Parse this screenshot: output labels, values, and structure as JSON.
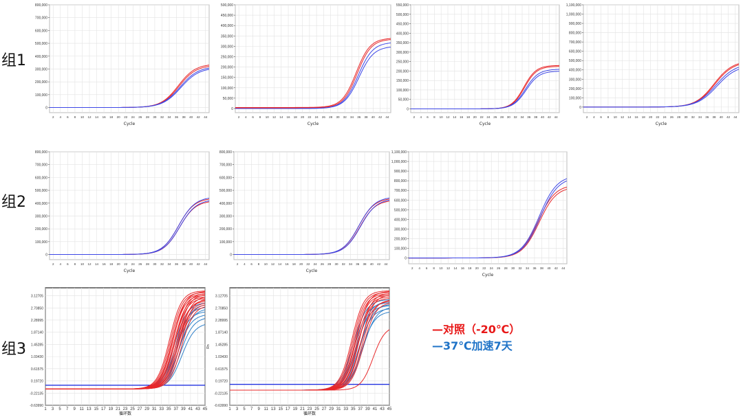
{
  "groups": [
    {
      "label": "组1"
    },
    {
      "label": "组2"
    },
    {
      "label": "组3"
    }
  ],
  "legend": {
    "control": "—对照（-20℃）",
    "accelerated": "—37℃加速7天"
  },
  "colors": {
    "control": "#e8282a",
    "accelerated": "#3c46e6",
    "accelerated_g3": "#2d7fc8"
  },
  "chart_data": [
    {
      "id": "g1c1",
      "type": "line",
      "xlabel": "Cycle",
      "xlim": [
        1,
        45
      ],
      "ylim": [
        -40000,
        800000
      ],
      "xticks": [
        2,
        4,
        6,
        8,
        10,
        12,
        14,
        16,
        18,
        20,
        22,
        24,
        26,
        28,
        30,
        32,
        34,
        36,
        38,
        40,
        42,
        44
      ],
      "yticks": [
        0,
        100000,
        200000,
        300000,
        400000,
        500000,
        600000,
        700000,
        800000
      ],
      "ytick_labels": [
        "0",
        "100,000",
        "200,000",
        "300,000",
        "400,000",
        "500,000",
        "600,000",
        "700,000",
        "800,000"
      ],
      "series": [
        {
          "color": "control",
          "baseline": 0,
          "plateau": 340000,
          "midpoint": 36.5,
          "slope": 0.42
        },
        {
          "color": "control",
          "baseline": 0,
          "plateau": 330000,
          "midpoint": 36.7,
          "slope": 0.42
        },
        {
          "color": "accelerated",
          "baseline": 0,
          "plateau": 320000,
          "midpoint": 37.0,
          "slope": 0.4
        },
        {
          "color": "accelerated",
          "baseline": 0,
          "plateau": 310000,
          "midpoint": 37.2,
          "slope": 0.4
        }
      ]
    },
    {
      "id": "g1c2",
      "type": "line",
      "xlabel": "Cycle",
      "xlim": [
        1,
        45
      ],
      "ylim": [
        -20000,
        500000
      ],
      "xticks": [
        2,
        4,
        6,
        8,
        10,
        12,
        14,
        16,
        18,
        20,
        22,
        24,
        26,
        28,
        30,
        32,
        34,
        36,
        38,
        40,
        42,
        44
      ],
      "yticks": [
        0,
        50000,
        100000,
        150000,
        200000,
        250000,
        300000,
        350000,
        400000,
        450000,
        500000
      ],
      "ytick_labels": [
        "0",
        "50,000",
        "100,000",
        "150,000",
        "200,000",
        "250,000",
        "300,000",
        "350,000",
        "400,000",
        "450,000",
        "500,000"
      ],
      "series": [
        {
          "color": "control",
          "baseline": 5000,
          "plateau": 340000,
          "midpoint": 35.2,
          "slope": 0.5
        },
        {
          "color": "control",
          "baseline": 3000,
          "plateau": 335000,
          "midpoint": 35.5,
          "slope": 0.5
        },
        {
          "color": "accelerated",
          "baseline": 0,
          "plateau": 320000,
          "midpoint": 35.8,
          "slope": 0.48
        },
        {
          "color": "accelerated",
          "baseline": 0,
          "plateau": 300000,
          "midpoint": 36.0,
          "slope": 0.48
        }
      ]
    },
    {
      "id": "g1c3",
      "type": "line",
      "xlabel": "Cycle",
      "xlim": [
        1,
        45
      ],
      "ylim": [
        -20000,
        550000
      ],
      "xticks": [
        2,
        4,
        6,
        8,
        10,
        12,
        14,
        16,
        18,
        20,
        22,
        24,
        26,
        28,
        30,
        32,
        34,
        36,
        38,
        40,
        42,
        44
      ],
      "yticks": [
        0,
        50000,
        100000,
        150000,
        200000,
        250000,
        300000,
        350000,
        400000,
        450000,
        500000,
        550000
      ],
      "ytick_labels": [
        "0",
        "50,000",
        "100,000",
        "150,000",
        "200,000",
        "250,000",
        "300,000",
        "350,000",
        "400,000",
        "450,000",
        "500,000",
        "550,000"
      ],
      "series": [
        {
          "color": "control",
          "baseline": 0,
          "plateau": 230000,
          "midpoint": 34.5,
          "slope": 0.55
        },
        {
          "color": "control",
          "baseline": 0,
          "plateau": 225000,
          "midpoint": 34.7,
          "slope": 0.55
        },
        {
          "color": "accelerated",
          "baseline": 0,
          "plateau": 210000,
          "midpoint": 35.0,
          "slope": 0.52
        },
        {
          "color": "accelerated",
          "baseline": 0,
          "plateau": 200000,
          "midpoint": 35.2,
          "slope": 0.52
        }
      ]
    },
    {
      "id": "g1c4",
      "type": "line",
      "xlabel": "Cycle",
      "xlim": [
        1,
        45
      ],
      "ylim": [
        -60000,
        1100000
      ],
      "xticks": [
        2,
        4,
        6,
        8,
        10,
        12,
        14,
        16,
        18,
        20,
        22,
        24,
        26,
        28,
        30,
        32,
        34,
        36,
        38,
        40,
        42,
        44
      ],
      "yticks": [
        0,
        100000,
        200000,
        300000,
        400000,
        500000,
        600000,
        700000,
        800000,
        900000,
        1000000,
        1100000
      ],
      "ytick_labels": [
        "0",
        "100,000",
        "200,000",
        "300,000",
        "400,000",
        "500,000",
        "600,000",
        "700,000",
        "800,000",
        "900,000",
        "1,000,000",
        "1,100,000"
      ],
      "series": [
        {
          "color": "control",
          "baseline": 0,
          "plateau": 500000,
          "midpoint": 38.0,
          "slope": 0.38
        },
        {
          "color": "control",
          "baseline": 0,
          "plateau": 490000,
          "midpoint": 38.2,
          "slope": 0.38
        },
        {
          "color": "accelerated",
          "baseline": 0,
          "plateau": 470000,
          "midpoint": 38.5,
          "slope": 0.36
        },
        {
          "color": "accelerated",
          "baseline": 0,
          "plateau": 450000,
          "midpoint": 38.8,
          "slope": 0.36
        }
      ]
    },
    {
      "id": "g2c1",
      "type": "line",
      "xlabel": "Cycle",
      "xlim": [
        1,
        45
      ],
      "ylim": [
        -40000,
        800000
      ],
      "xticks": [
        2,
        4,
        6,
        8,
        10,
        12,
        14,
        16,
        18,
        20,
        22,
        24,
        26,
        28,
        30,
        32,
        34,
        36,
        38,
        40,
        42,
        44
      ],
      "yticks": [
        0,
        100000,
        200000,
        300000,
        400000,
        500000,
        600000,
        700000,
        800000
      ],
      "ytick_labels": [
        "0",
        "100,000",
        "200,000",
        "300,000",
        "400,000",
        "500,000",
        "600,000",
        "700,000",
        "800,000"
      ],
      "series": [
        {
          "color": "control",
          "baseline": 0,
          "plateau": 440000,
          "midpoint": 36.5,
          "slope": 0.45
        },
        {
          "color": "control",
          "baseline": 0,
          "plateau": 420000,
          "midpoint": 36.8,
          "slope": 0.45
        },
        {
          "color": "accelerated",
          "baseline": 0,
          "plateau": 450000,
          "midpoint": 36.6,
          "slope": 0.44
        },
        {
          "color": "accelerated",
          "baseline": 0,
          "plateau": 430000,
          "midpoint": 36.9,
          "slope": 0.44
        }
      ]
    },
    {
      "id": "g2c2",
      "type": "line",
      "xlabel": "Cycle",
      "xlim": [
        1,
        45
      ],
      "ylim": [
        -40000,
        800000
      ],
      "xticks": [
        2,
        4,
        6,
        8,
        10,
        12,
        14,
        16,
        18,
        20,
        22,
        24,
        26,
        28,
        30,
        32,
        34,
        36,
        38,
        40,
        42,
        44
      ],
      "yticks": [
        0,
        100000,
        200000,
        300000,
        400000,
        500000,
        600000,
        700000,
        800000
      ],
      "ytick_labels": [
        "0",
        "100,000",
        "200,000",
        "300,000",
        "400,000",
        "500,000",
        "600,000",
        "700,000",
        "800,000"
      ],
      "series": [
        {
          "color": "control",
          "baseline": 0,
          "plateau": 440000,
          "midpoint": 36.3,
          "slope": 0.45
        },
        {
          "color": "control",
          "baseline": 0,
          "plateau": 425000,
          "midpoint": 36.6,
          "slope": 0.45
        },
        {
          "color": "accelerated",
          "baseline": 0,
          "plateau": 450000,
          "midpoint": 36.4,
          "slope": 0.44
        },
        {
          "color": "accelerated",
          "baseline": 0,
          "plateau": 435000,
          "midpoint": 36.8,
          "slope": 0.44
        }
      ]
    },
    {
      "id": "g2c3",
      "type": "line",
      "xlabel": "Cycle",
      "xlim": [
        1,
        45
      ],
      "ylim": [
        -60000,
        1100000
      ],
      "xticks": [
        2,
        4,
        6,
        8,
        10,
        12,
        14,
        16,
        18,
        20,
        22,
        24,
        26,
        28,
        30,
        32,
        34,
        36,
        38,
        40,
        42,
        44
      ],
      "yticks": [
        0,
        100000,
        200000,
        300000,
        400000,
        500000,
        600000,
        700000,
        800000,
        900000,
        1000000,
        1100000
      ],
      "ytick_labels": [
        "0",
        "100,000",
        "200,000",
        "300,000",
        "400,000",
        "500,000",
        "600,000",
        "700,000",
        "800,000",
        "900,000",
        "1,000,000",
        "1,100,000"
      ],
      "series": [
        {
          "color": "control",
          "baseline": 0,
          "plateau": 760000,
          "midpoint": 37.0,
          "slope": 0.42
        },
        {
          "color": "control",
          "baseline": 0,
          "plateau": 740000,
          "midpoint": 37.3,
          "slope": 0.42
        },
        {
          "color": "accelerated",
          "baseline": 0,
          "plateau": 860000,
          "midpoint": 37.3,
          "slope": 0.4
        },
        {
          "color": "accelerated",
          "baseline": 0,
          "plateau": 840000,
          "midpoint": 37.6,
          "slope": 0.4
        }
      ]
    },
    {
      "id": "g3c1",
      "type": "line",
      "xlabel": "循环数",
      "ylabel": "Rn",
      "xlim": [
        1,
        45
      ],
      "ylim": [
        -0.6399,
        3.4
      ],
      "xticks": [
        1,
        3,
        5,
        7,
        9,
        11,
        13,
        15,
        17,
        19,
        21,
        23,
        25,
        27,
        29,
        31,
        33,
        35,
        37,
        39,
        41,
        43,
        45
      ],
      "yticks": [
        -0.6399,
        -0.22135,
        0.1972,
        0.61575,
        1.0343,
        1.45285,
        1.8714,
        2.28995,
        2.7085,
        3.12705
      ],
      "ytick_labels": [
        "-0.63990",
        "-0.22135",
        "0.19720",
        "0.61575",
        "1.03430",
        "1.45285",
        "1.87140",
        "2.28995",
        "2.70850",
        "3.12705"
      ],
      "threshold": 0.05,
      "baseline": -0.08,
      "curves": {
        "control": [
          [
            3.3,
            35.2
          ],
          [
            3.25,
            35.5
          ],
          [
            3.2,
            35.8
          ],
          [
            3.15,
            36.0
          ],
          [
            3.28,
            36.2
          ],
          [
            3.1,
            36.4
          ],
          [
            3.05,
            36.6
          ],
          [
            3.22,
            36.8
          ],
          [
            2.95,
            37.0
          ],
          [
            3.18,
            37.2
          ],
          [
            3.0,
            37.4
          ],
          [
            2.9,
            37.6
          ],
          [
            3.12,
            37.8
          ],
          [
            2.85,
            38.0
          ],
          [
            3.05,
            38.2
          ],
          [
            2.8,
            38.5
          ]
        ],
        "accelerated": [
          [
            2.9,
            36.5
          ],
          [
            2.75,
            36.8
          ],
          [
            2.6,
            37.0
          ],
          [
            2.85,
            37.3
          ],
          [
            2.5,
            37.6
          ],
          [
            2.7,
            37.9
          ],
          [
            2.4,
            38.2
          ],
          [
            2.2,
            38.6
          ]
        ]
      }
    },
    {
      "id": "g3c2",
      "type": "line",
      "xlabel": "循环数",
      "ylabel": "Rn",
      "xlim": [
        1,
        45
      ],
      "ylim": [
        -0.6399,
        3.4
      ],
      "xticks": [
        1,
        3,
        5,
        7,
        9,
        11,
        13,
        15,
        17,
        19,
        21,
        23,
        25,
        27,
        29,
        31,
        33,
        35,
        37,
        39,
        41,
        43,
        45
      ],
      "yticks": [
        -0.6399,
        -0.22135,
        0.1972,
        0.61575,
        1.0343,
        1.45285,
        1.8714,
        2.28995,
        2.7085,
        3.12705
      ],
      "ytick_labels": [
        "-0.63990",
        "-0.22135",
        "0.19720",
        "0.61575",
        "1.03430",
        "1.45285",
        "1.87140",
        "2.28995",
        "2.70850",
        "3.12705"
      ],
      "threshold": 0.08,
      "baseline": -0.12,
      "curves": {
        "control": [
          [
            3.3,
            34.6
          ],
          [
            3.25,
            34.9
          ],
          [
            3.2,
            35.2
          ],
          [
            3.15,
            35.5
          ],
          [
            3.28,
            35.8
          ],
          [
            3.1,
            36.0
          ],
          [
            3.05,
            36.3
          ],
          [
            3.22,
            36.6
          ],
          [
            2.95,
            36.9
          ],
          [
            3.18,
            37.2
          ],
          [
            3.0,
            37.5
          ],
          [
            2.9,
            37.8
          ],
          [
            2.1,
            40.5
          ]
        ],
        "accelerated": [
          [
            3.0,
            35.0
          ],
          [
            2.9,
            35.4
          ],
          [
            2.8,
            35.8
          ],
          [
            2.95,
            36.1
          ],
          [
            2.7,
            36.5
          ],
          [
            2.85,
            36.9
          ],
          [
            2.6,
            37.3
          ],
          [
            2.75,
            37.7
          ]
        ]
      }
    }
  ]
}
